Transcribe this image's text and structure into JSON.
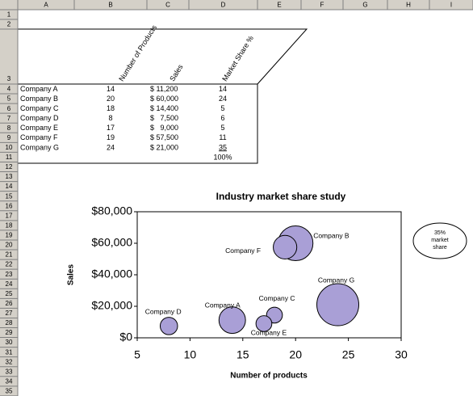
{
  "sheet": {
    "columns": [
      "A",
      "B",
      "C",
      "D",
      "E",
      "F",
      "G",
      "H",
      "I"
    ],
    "rows": [
      1,
      2,
      3,
      4,
      5,
      6,
      7,
      8,
      9,
      10,
      11,
      12,
      13,
      14,
      15,
      16,
      17,
      18,
      19,
      20,
      21,
      22,
      23,
      24,
      25,
      26,
      27,
      28,
      29,
      30,
      31,
      32,
      33,
      34,
      35
    ],
    "headers": [
      "Number of Products",
      "Sales",
      "Market Share %"
    ],
    "table": [
      [
        "Company A",
        "14",
        "$ 11,200",
        "14"
      ],
      [
        "Company B",
        "20",
        "$ 60,000",
        "24"
      ],
      [
        "Company C",
        "18",
        "$ 14,400",
        "5"
      ],
      [
        "Company D",
        "8",
        "$   7,500",
        "6"
      ],
      [
        "Company E",
        "17",
        "$   9,000",
        "5"
      ],
      [
        "Company F",
        "19",
        "$ 57,500",
        "11"
      ],
      [
        "Company G",
        "24",
        "$ 21,000",
        "35"
      ]
    ],
    "total": "100%"
  },
  "chart_data": {
    "type": "bubble",
    "title": "Industry market share study",
    "x_label": "Number of products",
    "y_label": "Sales",
    "x": [
      14,
      20,
      18,
      8,
      17,
      19,
      24
    ],
    "values": [
      11200,
      60000,
      14400,
      7500,
      9000,
      57500,
      21000
    ],
    "sizes": [
      14,
      24,
      5,
      6,
      5,
      11,
      35
    ],
    "point_labels": [
      "Company A",
      "Company B",
      "Company C",
      "Company D",
      "Company E",
      "Company F",
      "Company G"
    ],
    "color": "#a99fd6",
    "xlim": [
      5,
      30
    ],
    "xticks": [
      5,
      10,
      15,
      20,
      25,
      30
    ],
    "ylim": [
      0,
      80000
    ],
    "yticks": [
      {
        "value": 0,
        "label": "$0"
      },
      {
        "value": 20000,
        "label": "$20,000"
      },
      {
        "value": 40000,
        "label": "$40,000"
      },
      {
        "value": 60000,
        "label": "$60,000"
      },
      {
        "value": 80000,
        "label": "$80,000"
      }
    ],
    "size_legend": [
      "35%",
      "market",
      "share"
    ]
  }
}
